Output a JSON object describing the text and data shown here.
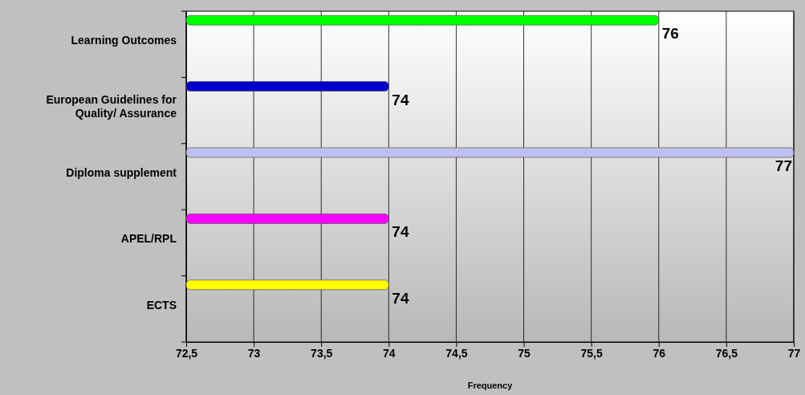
{
  "chart_data": {
    "type": "bar",
    "orientation": "horizontal",
    "xlabel": "Frequency",
    "categories": [
      "Learning Outcomes",
      "European Guidelines for Quality/ Assurance",
      "Diploma supplement",
      "APEL/RPL",
      "ECTS"
    ],
    "values": [
      76,
      74,
      77,
      74,
      74
    ],
    "colors": [
      "#00ff00",
      "#0000cc",
      "#c0c0f0",
      "#ff00ff",
      "#ffff00"
    ],
    "xlim": [
      72.5,
      77
    ],
    "xticks": [
      {
        "value": 72.5,
        "label": "72,5"
      },
      73,
      {
        "value": 73.5,
        "label": "73,5"
      },
      74,
      {
        "value": 74.5,
        "label": "74,5"
      },
      75,
      {
        "value": 75.5,
        "label": "75,5"
      },
      76,
      {
        "value": 76.5,
        "label": "76,5"
      },
      77
    ],
    "grid": "x",
    "data_labels": true
  }
}
